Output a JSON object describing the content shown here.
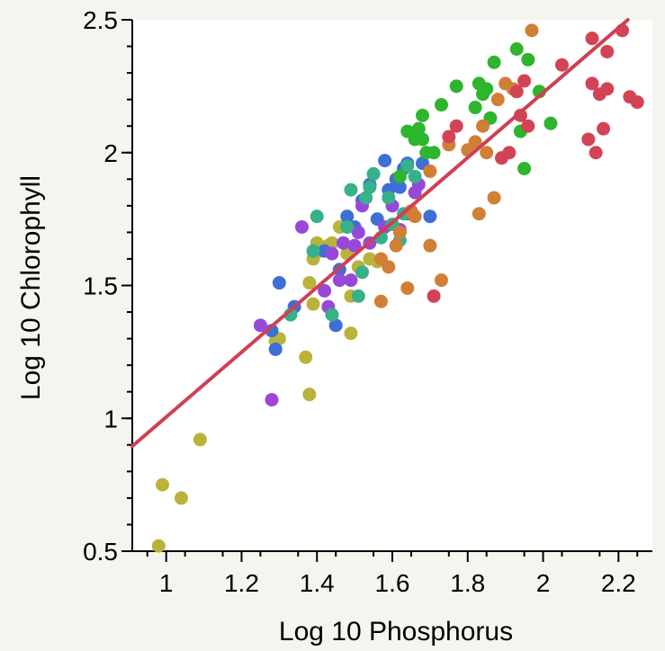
{
  "chart_data": {
    "type": "scatter",
    "xlabel": "Log 10 Phosphorus",
    "ylabel": "Log 10 Chlorophyll",
    "xlim": [
      0.91,
      2.29
    ],
    "ylim": [
      0.5,
      2.5
    ],
    "xticks": [
      1,
      1.2,
      1.4,
      1.6,
      1.8,
      2,
      2.2
    ],
    "xtick_labels": [
      "1",
      "1.2",
      "1.4",
      "1.6",
      "1.8",
      "2",
      "2.2"
    ],
    "yticks": [
      0.5,
      1,
      1.5,
      2,
      2.5
    ],
    "ytick_labels": [
      "0.5",
      "1",
      "1.5",
      "2",
      "2.5"
    ],
    "grid": false,
    "fit_line": {
      "color": "#cf4055",
      "points": [
        [
          0.91,
          0.895
        ],
        [
          2.225,
          2.5
        ]
      ]
    },
    "series": [
      {
        "color": "#b9b33a",
        "points": [
          [
            0.98,
            0.52
          ],
          [
            0.99,
            0.75
          ],
          [
            1.04,
            0.7
          ],
          [
            1.09,
            0.92
          ],
          [
            1.29,
            1.29
          ],
          [
            1.3,
            1.3
          ],
          [
            1.33,
            1.39
          ],
          [
            1.37,
            1.23
          ],
          [
            1.38,
            1.09
          ],
          [
            1.38,
            1.51
          ],
          [
            1.39,
            1.6
          ],
          [
            1.39,
            1.43
          ],
          [
            1.4,
            1.66
          ],
          [
            1.41,
            1.63
          ],
          [
            1.43,
            1.65
          ],
          [
            1.44,
            1.66
          ],
          [
            1.46,
            1.72
          ],
          [
            1.48,
            1.62
          ],
          [
            1.49,
            1.46
          ],
          [
            1.49,
            1.32
          ],
          [
            1.51,
            1.57
          ],
          [
            1.52,
            1.55
          ],
          [
            1.54,
            1.6
          ],
          [
            1.56,
            1.59
          ]
        ]
      },
      {
        "color": "#3d6fd6",
        "points": [
          [
            1.28,
            1.33
          ],
          [
            1.29,
            1.26
          ],
          [
            1.3,
            1.51
          ],
          [
            1.34,
            1.42
          ],
          [
            1.42,
            1.63
          ],
          [
            1.45,
            1.35
          ],
          [
            1.46,
            1.56
          ],
          [
            1.48,
            1.76
          ],
          [
            1.5,
            1.72
          ],
          [
            1.52,
            1.82
          ],
          [
            1.54,
            1.88
          ],
          [
            1.56,
            1.75
          ],
          [
            1.58,
            1.97
          ],
          [
            1.59,
            1.86
          ],
          [
            1.61,
            1.9
          ],
          [
            1.62,
            1.87
          ],
          [
            1.63,
            1.94
          ],
          [
            1.64,
            1.96
          ],
          [
            1.68,
            1.96
          ],
          [
            1.7,
            1.76
          ]
        ]
      },
      {
        "color": "#9848d8",
        "points": [
          [
            1.25,
            1.35
          ],
          [
            1.28,
            1.07
          ],
          [
            1.36,
            1.72
          ],
          [
            1.42,
            1.48
          ],
          [
            1.43,
            1.42
          ],
          [
            1.44,
            1.62
          ],
          [
            1.46,
            1.52
          ],
          [
            1.47,
            1.66
          ],
          [
            1.49,
            1.52
          ],
          [
            1.5,
            1.65
          ],
          [
            1.51,
            1.7
          ],
          [
            1.52,
            1.8
          ],
          [
            1.54,
            1.66
          ],
          [
            1.58,
            1.72
          ],
          [
            1.6,
            1.8
          ],
          [
            1.62,
            1.71
          ],
          [
            1.64,
            1.77
          ],
          [
            1.66,
            1.85
          ],
          [
            1.67,
            1.88
          ]
        ]
      },
      {
        "color": "#38b08a",
        "points": [
          [
            1.33,
            1.39
          ],
          [
            1.39,
            1.63
          ],
          [
            1.4,
            1.76
          ],
          [
            1.44,
            1.39
          ],
          [
            1.48,
            1.72
          ],
          [
            1.49,
            1.86
          ],
          [
            1.51,
            1.46
          ],
          [
            1.52,
            1.55
          ],
          [
            1.53,
            1.83
          ],
          [
            1.54,
            1.87
          ],
          [
            1.55,
            1.92
          ],
          [
            1.57,
            1.68
          ],
          [
            1.59,
            1.83
          ],
          [
            1.6,
            1.73
          ],
          [
            1.62,
            1.67
          ],
          [
            1.63,
            1.77
          ],
          [
            1.64,
            1.95
          ],
          [
            1.66,
            1.91
          ]
        ]
      },
      {
        "color": "#2db52d",
        "points": [
          [
            1.62,
            1.91
          ],
          [
            1.64,
            2.08
          ],
          [
            1.66,
            2.05
          ],
          [
            1.67,
            2.09
          ],
          [
            1.68,
            2.05
          ],
          [
            1.68,
            2.14
          ],
          [
            1.69,
            2.0
          ],
          [
            1.71,
            2.0
          ],
          [
            1.73,
            2.18
          ],
          [
            1.77,
            2.25
          ],
          [
            1.82,
            2.17
          ],
          [
            1.83,
            2.26
          ],
          [
            1.84,
            2.22
          ],
          [
            1.85,
            2.24
          ],
          [
            1.86,
            2.13
          ],
          [
            1.87,
            2.34
          ],
          [
            1.93,
            2.39
          ],
          [
            1.94,
            2.08
          ],
          [
            1.95,
            1.94
          ],
          [
            1.96,
            2.35
          ],
          [
            1.99,
            2.23
          ],
          [
            2.02,
            2.11
          ]
        ]
      },
      {
        "color": "#d17f35",
        "points": [
          [
            1.57,
            1.44
          ],
          [
            1.57,
            1.6
          ],
          [
            1.59,
            1.57
          ],
          [
            1.61,
            1.65
          ],
          [
            1.62,
            1.7
          ],
          [
            1.64,
            1.49
          ],
          [
            1.65,
            1.78
          ],
          [
            1.66,
            1.76
          ],
          [
            1.7,
            1.65
          ],
          [
            1.7,
            1.93
          ],
          [
            1.73,
            1.52
          ],
          [
            1.75,
            2.03
          ],
          [
            1.8,
            2.01
          ],
          [
            1.82,
            2.04
          ],
          [
            1.83,
            1.77
          ],
          [
            1.84,
            2.1
          ],
          [
            1.85,
            2.0
          ],
          [
            1.87,
            1.83
          ],
          [
            1.88,
            2.2
          ],
          [
            1.9,
            2.26
          ],
          [
            1.92,
            2.24
          ],
          [
            1.97,
            2.46
          ]
        ]
      },
      {
        "color": "#d24455",
        "points": [
          [
            1.71,
            1.46
          ],
          [
            1.75,
            2.06
          ],
          [
            1.77,
            2.1
          ],
          [
            1.89,
            1.98
          ],
          [
            1.91,
            2.0
          ],
          [
            1.93,
            2.23
          ],
          [
            1.94,
            2.14
          ],
          [
            1.95,
            2.27
          ],
          [
            1.96,
            2.1
          ],
          [
            2.05,
            2.33
          ],
          [
            2.12,
            2.05
          ],
          [
            2.13,
            2.26
          ],
          [
            2.13,
            2.43
          ],
          [
            2.14,
            2.0
          ],
          [
            2.15,
            2.22
          ],
          [
            2.16,
            2.09
          ],
          [
            2.17,
            2.38
          ],
          [
            2.17,
            2.24
          ],
          [
            2.21,
            2.46
          ],
          [
            2.23,
            2.21
          ],
          [
            2.25,
            2.19
          ]
        ]
      }
    ]
  }
}
